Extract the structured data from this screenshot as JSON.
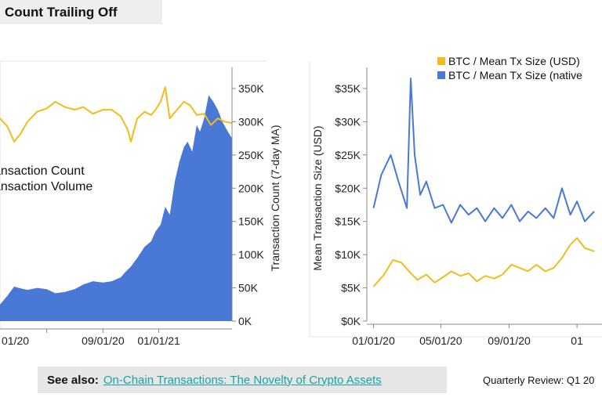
{
  "header": {
    "title": "Count Trailing Off"
  },
  "footer": {
    "see_also_label": "See also:",
    "see_also_link": "On-Chain Transactions: The Novelty of Crypto Assets",
    "review": "Quarterly Review: Q1 20"
  },
  "colors": {
    "blue": "#4a78d6",
    "gold": "#f0bd1a",
    "axis": "#888888"
  },
  "chart_data": [
    {
      "type": "area",
      "legend": [
        "ansaction Count",
        "ansaction Volume"
      ],
      "ylabel": "Transaction Count (7-day MA)",
      "yticks": [
        "0K",
        "50K",
        "100K",
        "150K",
        "200K",
        "250K",
        "300K",
        "350K"
      ],
      "ylim": [
        0,
        370000
      ],
      "xticks": [
        "01/20",
        "09/01/20",
        "01/01/21"
      ],
      "xtick_dates": [
        "2020-05-01",
        "2020-09-01",
        "2021-01-01"
      ],
      "xlim": [
        "2020-01-20",
        "2021-06-10"
      ],
      "series": [
        {
          "style": "area",
          "color": "#4a78d6",
          "x": [
            "2020-01-20",
            "2020-02-05",
            "2020-02-20",
            "2020-03-01",
            "2020-03-20",
            "2020-04-10",
            "2020-05-01",
            "2020-05-20",
            "2020-06-10",
            "2020-07-01",
            "2020-07-20",
            "2020-08-10",
            "2020-09-01",
            "2020-09-20",
            "2020-10-10",
            "2020-10-20",
            "2020-11-01",
            "2020-11-15",
            "2020-12-01",
            "2020-12-15",
            "2020-12-25",
            "2021-01-05",
            "2021-01-15",
            "2021-01-25",
            "2021-02-05",
            "2021-02-15",
            "2021-02-25",
            "2021-03-05",
            "2021-03-15",
            "2021-03-25",
            "2021-04-01",
            "2021-04-10",
            "2021-04-20",
            "2021-04-30",
            "2021-05-10",
            "2021-05-20",
            "2021-06-01",
            "2021-06-10"
          ],
          "y": [
            25000,
            38000,
            52000,
            50000,
            47000,
            50000,
            48000,
            42000,
            44000,
            48000,
            55000,
            60000,
            58000,
            60000,
            66000,
            74000,
            82000,
            95000,
            112000,
            120000,
            135000,
            145000,
            172000,
            160000,
            210000,
            240000,
            262000,
            270000,
            255000,
            295000,
            285000,
            305000,
            340000,
            330000,
            318000,
            300000,
            285000,
            275000
          ]
        },
        {
          "style": "line",
          "color": "#f0bd1a",
          "x": [
            "2020-01-20",
            "2020-02-05",
            "2020-02-20",
            "2020-03-05",
            "2020-03-20",
            "2020-04-10",
            "2020-05-01",
            "2020-05-20",
            "2020-06-10",
            "2020-07-01",
            "2020-07-20",
            "2020-08-10",
            "2020-09-01",
            "2020-09-20",
            "2020-10-10",
            "2020-10-25",
            "2020-11-01",
            "2020-11-15",
            "2020-12-01",
            "2020-12-15",
            "2020-12-25",
            "2021-01-05",
            "2021-01-15",
            "2021-01-25",
            "2021-02-10",
            "2021-02-25",
            "2021-03-10",
            "2021-03-25",
            "2021-04-10",
            "2021-04-25",
            "2021-05-10",
            "2021-05-25",
            "2021-06-10"
          ],
          "y": [
            305000,
            293000,
            270000,
            282000,
            300000,
            315000,
            320000,
            330000,
            322000,
            318000,
            322000,
            312000,
            318000,
            318000,
            308000,
            288000,
            270000,
            305000,
            315000,
            310000,
            318000,
            330000,
            352000,
            305000,
            318000,
            330000,
            325000,
            310000,
            312000,
            295000,
            305000,
            300000,
            298000
          ]
        }
      ]
    },
    {
      "type": "line",
      "legend": [
        "BTC / Mean Tx Size (USD)",
        "BTC / Mean Tx Size (native"
      ],
      "ylabel": "Mean Transaction Size (USD)",
      "yticks": [
        "$0K",
        "$5K",
        "$10K",
        "$15K",
        "$20K",
        "$25K",
        "$30K",
        "$35K"
      ],
      "ylim": [
        0,
        37000
      ],
      "xticks": [
        "01/01/20",
        "05/01/20",
        "09/01/20",
        "01"
      ],
      "xtick_dates": [
        "2020-01-01",
        "2020-05-01",
        "2020-09-01",
        "2021-01-01"
      ],
      "xlim": [
        "2019-12-20",
        "2021-02-15"
      ],
      "series": [
        {
          "name": "BTC / Mean Tx Size (USD)",
          "color": "#f0bd1a",
          "x": [
            "2020-01-01",
            "2020-01-20",
            "2020-02-05",
            "2020-02-20",
            "2020-03-05",
            "2020-03-20",
            "2020-04-05",
            "2020-04-20",
            "2020-05-05",
            "2020-05-20",
            "2020-06-05",
            "2020-06-20",
            "2020-07-05",
            "2020-07-20",
            "2020-08-05",
            "2020-08-20",
            "2020-09-05",
            "2020-09-20",
            "2020-10-05",
            "2020-10-20",
            "2020-11-05",
            "2020-11-20",
            "2020-12-05",
            "2020-12-20",
            "2021-01-01",
            "2021-01-15",
            "2021-02-01"
          ],
          "y": [
            5200,
            7000,
            9200,
            8800,
            7500,
            6200,
            7000,
            5800,
            6600,
            7500,
            6800,
            7200,
            6000,
            6800,
            6400,
            7000,
            8500,
            8000,
            7500,
            8500,
            7500,
            8000,
            9500,
            11500,
            12500,
            11000,
            10500
          ]
        },
        {
          "name": "BTC / Mean Tx Size (native",
          "color": "#4a78d6",
          "x": [
            "2020-01-01",
            "2020-01-15",
            "2020-02-01",
            "2020-02-15",
            "2020-03-01",
            "2020-03-08",
            "2020-03-15",
            "2020-03-25",
            "2020-04-05",
            "2020-04-20",
            "2020-05-05",
            "2020-05-20",
            "2020-06-05",
            "2020-06-20",
            "2020-07-05",
            "2020-07-20",
            "2020-08-05",
            "2020-08-20",
            "2020-09-05",
            "2020-09-20",
            "2020-10-05",
            "2020-10-20",
            "2020-11-05",
            "2020-11-20",
            "2020-12-05",
            "2020-12-20",
            "2021-01-01",
            "2021-01-15",
            "2021-02-01"
          ],
          "y": [
            17000,
            22000,
            25000,
            21000,
            17000,
            36500,
            25000,
            19000,
            21000,
            17000,
            17500,
            14800,
            17500,
            16000,
            17000,
            15000,
            17000,
            15500,
            17500,
            15000,
            16500,
            15500,
            17000,
            15500,
            20000,
            16000,
            18000,
            15000,
            16500
          ]
        }
      ]
    }
  ]
}
